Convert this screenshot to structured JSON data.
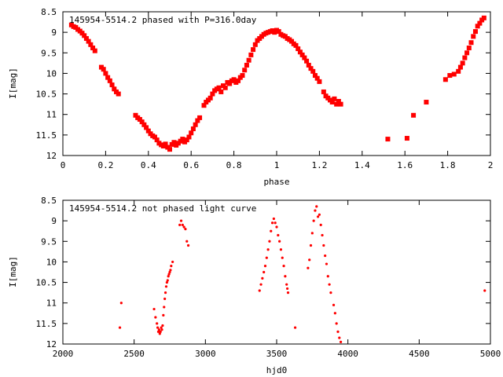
{
  "chart_data": [
    {
      "type": "scatter",
      "title": "145954-5514.2 phased with P=316.0day",
      "xlabel": "phase",
      "ylabel": "I[mag]",
      "xlim": [
        0,
        2
      ],
      "ylim": [
        8.5,
        12
      ],
      "y_inverted": true,
      "grid": false,
      "marker": "cross",
      "color": "#ff0000",
      "x_ticks": [
        "0",
        "0.2",
        "0.4",
        "0.6",
        "0.8",
        "1",
        "1.2",
        "1.4",
        "1.6",
        "1.8",
        "2"
      ],
      "y_ticks": [
        "8.5",
        "9",
        "9.5",
        "10",
        "10.5",
        "11",
        "11.5",
        "12"
      ],
      "points": [
        [
          0.04,
          8.82
        ],
        [
          0.05,
          8.86
        ],
        [
          0.06,
          8.88
        ],
        [
          0.07,
          8.93
        ],
        [
          0.08,
          8.97
        ],
        [
          0.09,
          9.02
        ],
        [
          0.1,
          9.08
        ],
        [
          0.11,
          9.15
        ],
        [
          0.12,
          9.22
        ],
        [
          0.13,
          9.3
        ],
        [
          0.14,
          9.38
        ],
        [
          0.15,
          9.45
        ],
        [
          0.18,
          9.85
        ],
        [
          0.19,
          9.9
        ],
        [
          0.2,
          10.0
        ],
        [
          0.21,
          10.1
        ],
        [
          0.22,
          10.18
        ],
        [
          0.23,
          10.28
        ],
        [
          0.24,
          10.38
        ],
        [
          0.25,
          10.45
        ],
        [
          0.26,
          10.5
        ],
        [
          0.34,
          11.02
        ],
        [
          0.35,
          11.08
        ],
        [
          0.36,
          11.12
        ],
        [
          0.37,
          11.18
        ],
        [
          0.38,
          11.25
        ],
        [
          0.39,
          11.32
        ],
        [
          0.4,
          11.4
        ],
        [
          0.41,
          11.47
        ],
        [
          0.42,
          11.52
        ],
        [
          0.43,
          11.55
        ],
        [
          0.44,
          11.62
        ],
        [
          0.45,
          11.7
        ],
        [
          0.46,
          11.74
        ],
        [
          0.47,
          11.77
        ],
        [
          0.48,
          11.72
        ],
        [
          0.49,
          11.8
        ],
        [
          0.5,
          11.85
        ],
        [
          0.51,
          11.73
        ],
        [
          0.52,
          11.68
        ],
        [
          0.53,
          11.75
        ],
        [
          0.54,
          11.7
        ],
        [
          0.55,
          11.65
        ],
        [
          0.56,
          11.6
        ],
        [
          0.57,
          11.67
        ],
        [
          0.58,
          11.62
        ],
        [
          0.59,
          11.55
        ],
        [
          0.6,
          11.45
        ],
        [
          0.61,
          11.35
        ],
        [
          0.62,
          11.25
        ],
        [
          0.63,
          11.15
        ],
        [
          0.64,
          11.08
        ],
        [
          0.66,
          10.78
        ],
        [
          0.67,
          10.7
        ],
        [
          0.68,
          10.65
        ],
        [
          0.69,
          10.6
        ],
        [
          0.7,
          10.5
        ],
        [
          0.71,
          10.42
        ],
        [
          0.72,
          10.38
        ],
        [
          0.73,
          10.35
        ],
        [
          0.74,
          10.45
        ],
        [
          0.75,
          10.3
        ],
        [
          0.76,
          10.35
        ],
        [
          0.77,
          10.22
        ],
        [
          0.78,
          10.25
        ],
        [
          0.79,
          10.18
        ],
        [
          0.8,
          10.15
        ],
        [
          0.81,
          10.22
        ],
        [
          0.82,
          10.18
        ],
        [
          0.83,
          10.1
        ],
        [
          0.84,
          10.05
        ],
        [
          0.85,
          9.92
        ],
        [
          0.86,
          9.8
        ],
        [
          0.87,
          9.68
        ],
        [
          0.88,
          9.55
        ],
        [
          0.89,
          9.42
        ],
        [
          0.9,
          9.3
        ],
        [
          0.91,
          9.2
        ],
        [
          0.92,
          9.15
        ],
        [
          0.93,
          9.1
        ],
        [
          0.94,
          9.05
        ],
        [
          0.95,
          9.02
        ],
        [
          0.96,
          9.0
        ],
        [
          0.97,
          8.98
        ],
        [
          0.98,
          8.96
        ],
        [
          0.99,
          9.0
        ],
        [
          1.0,
          8.95
        ],
        [
          1.01,
          8.98
        ],
        [
          1.02,
          9.05
        ],
        [
          1.03,
          9.08
        ],
        [
          1.04,
          9.1
        ],
        [
          1.05,
          9.15
        ],
        [
          1.06,
          9.18
        ],
        [
          1.07,
          9.22
        ],
        [
          1.08,
          9.28
        ],
        [
          1.09,
          9.32
        ],
        [
          1.1,
          9.4
        ],
        [
          1.11,
          9.48
        ],
        [
          1.12,
          9.55
        ],
        [
          1.13,
          9.62
        ],
        [
          1.14,
          9.7
        ],
        [
          1.15,
          9.8
        ],
        [
          1.16,
          9.88
        ],
        [
          1.17,
          9.95
        ],
        [
          1.18,
          10.05
        ],
        [
          1.19,
          10.12
        ],
        [
          1.2,
          10.2
        ],
        [
          1.22,
          10.45
        ],
        [
          1.23,
          10.55
        ],
        [
          1.24,
          10.6
        ],
        [
          1.25,
          10.65
        ],
        [
          1.26,
          10.7
        ],
        [
          1.27,
          10.62
        ],
        [
          1.28,
          10.75
        ],
        [
          1.29,
          10.68
        ],
        [
          1.3,
          10.75
        ],
        [
          1.52,
          11.6
        ],
        [
          1.61,
          11.58
        ],
        [
          1.64,
          11.02
        ],
        [
          1.7,
          10.7
        ],
        [
          1.79,
          10.15
        ],
        [
          1.81,
          10.05
        ],
        [
          1.83,
          10.02
        ],
        [
          1.85,
          9.95
        ],
        [
          1.86,
          9.85
        ],
        [
          1.87,
          9.75
        ],
        [
          1.88,
          9.62
        ],
        [
          1.89,
          9.5
        ],
        [
          1.9,
          9.38
        ],
        [
          1.91,
          9.25
        ],
        [
          1.92,
          9.1
        ],
        [
          1.93,
          8.98
        ],
        [
          1.94,
          8.85
        ],
        [
          1.95,
          8.78
        ],
        [
          1.96,
          8.7
        ],
        [
          1.97,
          8.65
        ]
      ]
    },
    {
      "type": "scatter",
      "title": "145954-5514.2 not phased light curve",
      "xlabel": "hjd0",
      "ylabel": "I[mag]",
      "xlim": [
        2000,
        5000
      ],
      "ylim": [
        8.5,
        12
      ],
      "y_inverted": true,
      "grid": false,
      "marker": "dot",
      "color": "#ff0000",
      "x_ticks": [
        "2000",
        "2500",
        "3000",
        "3500",
        "4000",
        "4500",
        "5000"
      ],
      "y_ticks": [
        "8.5",
        "9",
        "9.5",
        "10",
        "10.5",
        "11",
        "11.5",
        "12"
      ],
      "points": [
        [
          2400,
          11.6
        ],
        [
          2410,
          11.0
        ],
        [
          2640,
          11.15
        ],
        [
          2650,
          11.35
        ],
        [
          2660,
          11.5
        ],
        [
          2665,
          11.6
        ],
        [
          2670,
          11.7
        ],
        [
          2675,
          11.65
        ],
        [
          2680,
          11.75
        ],
        [
          2685,
          11.7
        ],
        [
          2690,
          11.6
        ],
        [
          2695,
          11.65
        ],
        [
          2700,
          11.55
        ],
        [
          2705,
          11.3
        ],
        [
          2710,
          11.1
        ],
        [
          2715,
          10.9
        ],
        [
          2720,
          10.75
        ],
        [
          2725,
          10.6
        ],
        [
          2730,
          10.5
        ],
        [
          2735,
          10.45
        ],
        [
          2740,
          10.35
        ],
        [
          2745,
          10.3
        ],
        [
          2750,
          10.25
        ],
        [
          2755,
          10.2
        ],
        [
          2760,
          10.1
        ],
        [
          2770,
          10.0
        ],
        [
          2820,
          9.1
        ],
        [
          2830,
          9.0
        ],
        [
          2840,
          9.1
        ],
        [
          2850,
          9.15
        ],
        [
          2860,
          9.2
        ],
        [
          2870,
          9.5
        ],
        [
          2880,
          9.6
        ],
        [
          3380,
          10.7
        ],
        [
          3390,
          10.55
        ],
        [
          3400,
          10.4
        ],
        [
          3410,
          10.25
        ],
        [
          3420,
          10.1
        ],
        [
          3430,
          9.9
        ],
        [
          3440,
          9.7
        ],
        [
          3450,
          9.5
        ],
        [
          3460,
          9.25
        ],
        [
          3470,
          9.05
        ],
        [
          3480,
          8.95
        ],
        [
          3490,
          9.05
        ],
        [
          3500,
          9.15
        ],
        [
          3510,
          9.35
        ],
        [
          3520,
          9.5
        ],
        [
          3530,
          9.7
        ],
        [
          3540,
          9.9
        ],
        [
          3550,
          10.1
        ],
        [
          3560,
          10.35
        ],
        [
          3570,
          10.55
        ],
        [
          3575,
          10.65
        ],
        [
          3580,
          10.75
        ],
        [
          3630,
          11.6
        ],
        [
          3720,
          10.15
        ],
        [
          3730,
          9.95
        ],
        [
          3740,
          9.6
        ],
        [
          3750,
          9.3
        ],
        [
          3760,
          9.0
        ],
        [
          3770,
          8.75
        ],
        [
          3780,
          8.65
        ],
        [
          3790,
          8.9
        ],
        [
          3800,
          8.85
        ],
        [
          3810,
          9.1
        ],
        [
          3820,
          9.35
        ],
        [
          3830,
          9.6
        ],
        [
          3840,
          9.85
        ],
        [
          3850,
          10.05
        ],
        [
          3860,
          10.35
        ],
        [
          3870,
          10.55
        ],
        [
          3880,
          10.75
        ],
        [
          3900,
          11.05
        ],
        [
          3910,
          11.25
        ],
        [
          3920,
          11.5
        ],
        [
          3930,
          11.7
        ],
        [
          3940,
          11.85
        ],
        [
          3950,
          11.95
        ],
        [
          4960,
          10.7
        ]
      ]
    }
  ]
}
